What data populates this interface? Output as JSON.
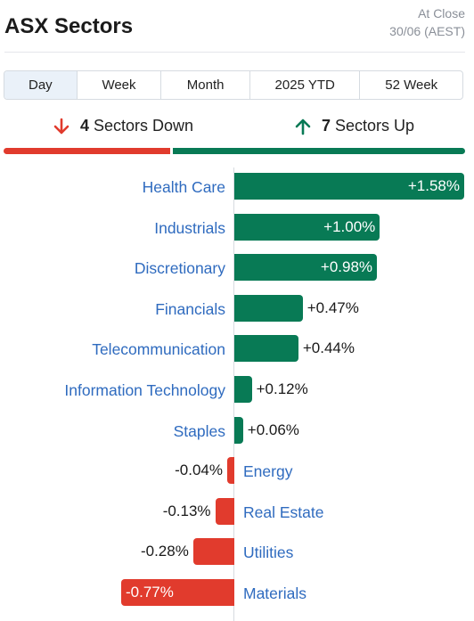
{
  "header": {
    "title": "ASX Sectors",
    "asof_line1": "At Close",
    "asof_line2": "30/06 (AEST)"
  },
  "tabs": [
    {
      "label": "Day",
      "active": true
    },
    {
      "label": "Week",
      "active": false
    },
    {
      "label": "Month",
      "active": false
    },
    {
      "label": "2025 YTD",
      "active": false
    },
    {
      "label": "52 Week",
      "active": false
    }
  ],
  "summary": {
    "down_count": "4",
    "down_label": "Sectors Down",
    "up_count": "7",
    "up_label": "Sectors Up",
    "down_color": "#e13b2d",
    "up_color": "#087a55"
  },
  "sectors": [
    {
      "name": "Health Care",
      "value": "+1.58%",
      "change": 1.58
    },
    {
      "name": "Industrials",
      "value": "+1.00%",
      "change": 1.0
    },
    {
      "name": "Discretionary",
      "value": "+0.98%",
      "change": 0.98
    },
    {
      "name": "Financials",
      "value": "+0.47%",
      "change": 0.47
    },
    {
      "name": "Telecommunication",
      "value": "+0.44%",
      "change": 0.44
    },
    {
      "name": "Information Technology",
      "value": "+0.12%",
      "change": 0.12
    },
    {
      "name": "Staples",
      "value": "+0.06%",
      "change": 0.06
    },
    {
      "name": "Energy",
      "value": "-0.04%",
      "change": -0.04
    },
    {
      "name": "Real Estate",
      "value": "-0.13%",
      "change": -0.13
    },
    {
      "name": "Utilities",
      "value": "-0.28%",
      "change": -0.28
    },
    {
      "name": "Materials",
      "value": "-0.77%",
      "change": -0.77
    }
  ]
}
